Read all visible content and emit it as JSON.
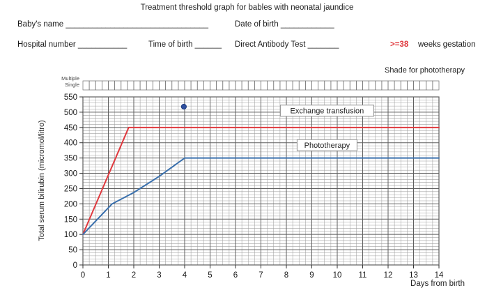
{
  "title": "Treatment threshold graph for bables with neonatal jaundice",
  "form": {
    "baby_name": "Baby's name ________________________________",
    "date_of_birth": "Date of birth ____________",
    "hospital_number": "Hospital number ___________",
    "time_of_birth": "Time of birth ______",
    "direct_antibody_test": "Direct Antibody Test _______",
    "gestation_value": ">=38",
    "gestation_unit": "weeks gestation",
    "gestation_color": "#e0393e"
  },
  "shade_note": "Shade for phototherapy",
  "strip": {
    "label_multiple": "Multiple",
    "label_single": "Single",
    "cells_per_day": 4
  },
  "chart_data": {
    "type": "line",
    "title": "",
    "xlabel": "Days from birth",
    "ylabel": "Total serum bilirubin (micromol/litro)",
    "xlim": [
      0,
      14
    ],
    "ylim": [
      0,
      550
    ],
    "x_tick_step": 1,
    "y_tick_step": 50,
    "x_minor_per_day": 4,
    "y_minor_step": 10,
    "grid": "on",
    "legend_position": "inline-annotations",
    "series": [
      {
        "name": "Exchange transfusion",
        "color": "#e0393e",
        "points": [
          [
            0,
            100
          ],
          [
            1.8,
            450
          ],
          [
            14,
            450
          ]
        ]
      },
      {
        "name": "Phototherapy",
        "color": "#3a70ad",
        "points": [
          [
            0,
            100
          ],
          [
            1.15,
            200
          ],
          [
            2,
            237
          ],
          [
            3,
            290
          ],
          [
            4,
            350
          ],
          [
            14,
            350
          ]
        ]
      }
    ],
    "marker": {
      "x": 3.97,
      "y": 518,
      "color": "#2f4f9f"
    },
    "annotations": [
      {
        "text": "Exchange transfusion",
        "x": 9.6,
        "y": 505
      },
      {
        "text": "Phototherapy",
        "x": 9.6,
        "y": 392
      }
    ],
    "colors": {
      "grid_minor": "#a0a0a0",
      "grid_major": "#5e5e5e",
      "axis_text": "#1a1a1a",
      "annotation_border": "#8f8f8f"
    }
  }
}
